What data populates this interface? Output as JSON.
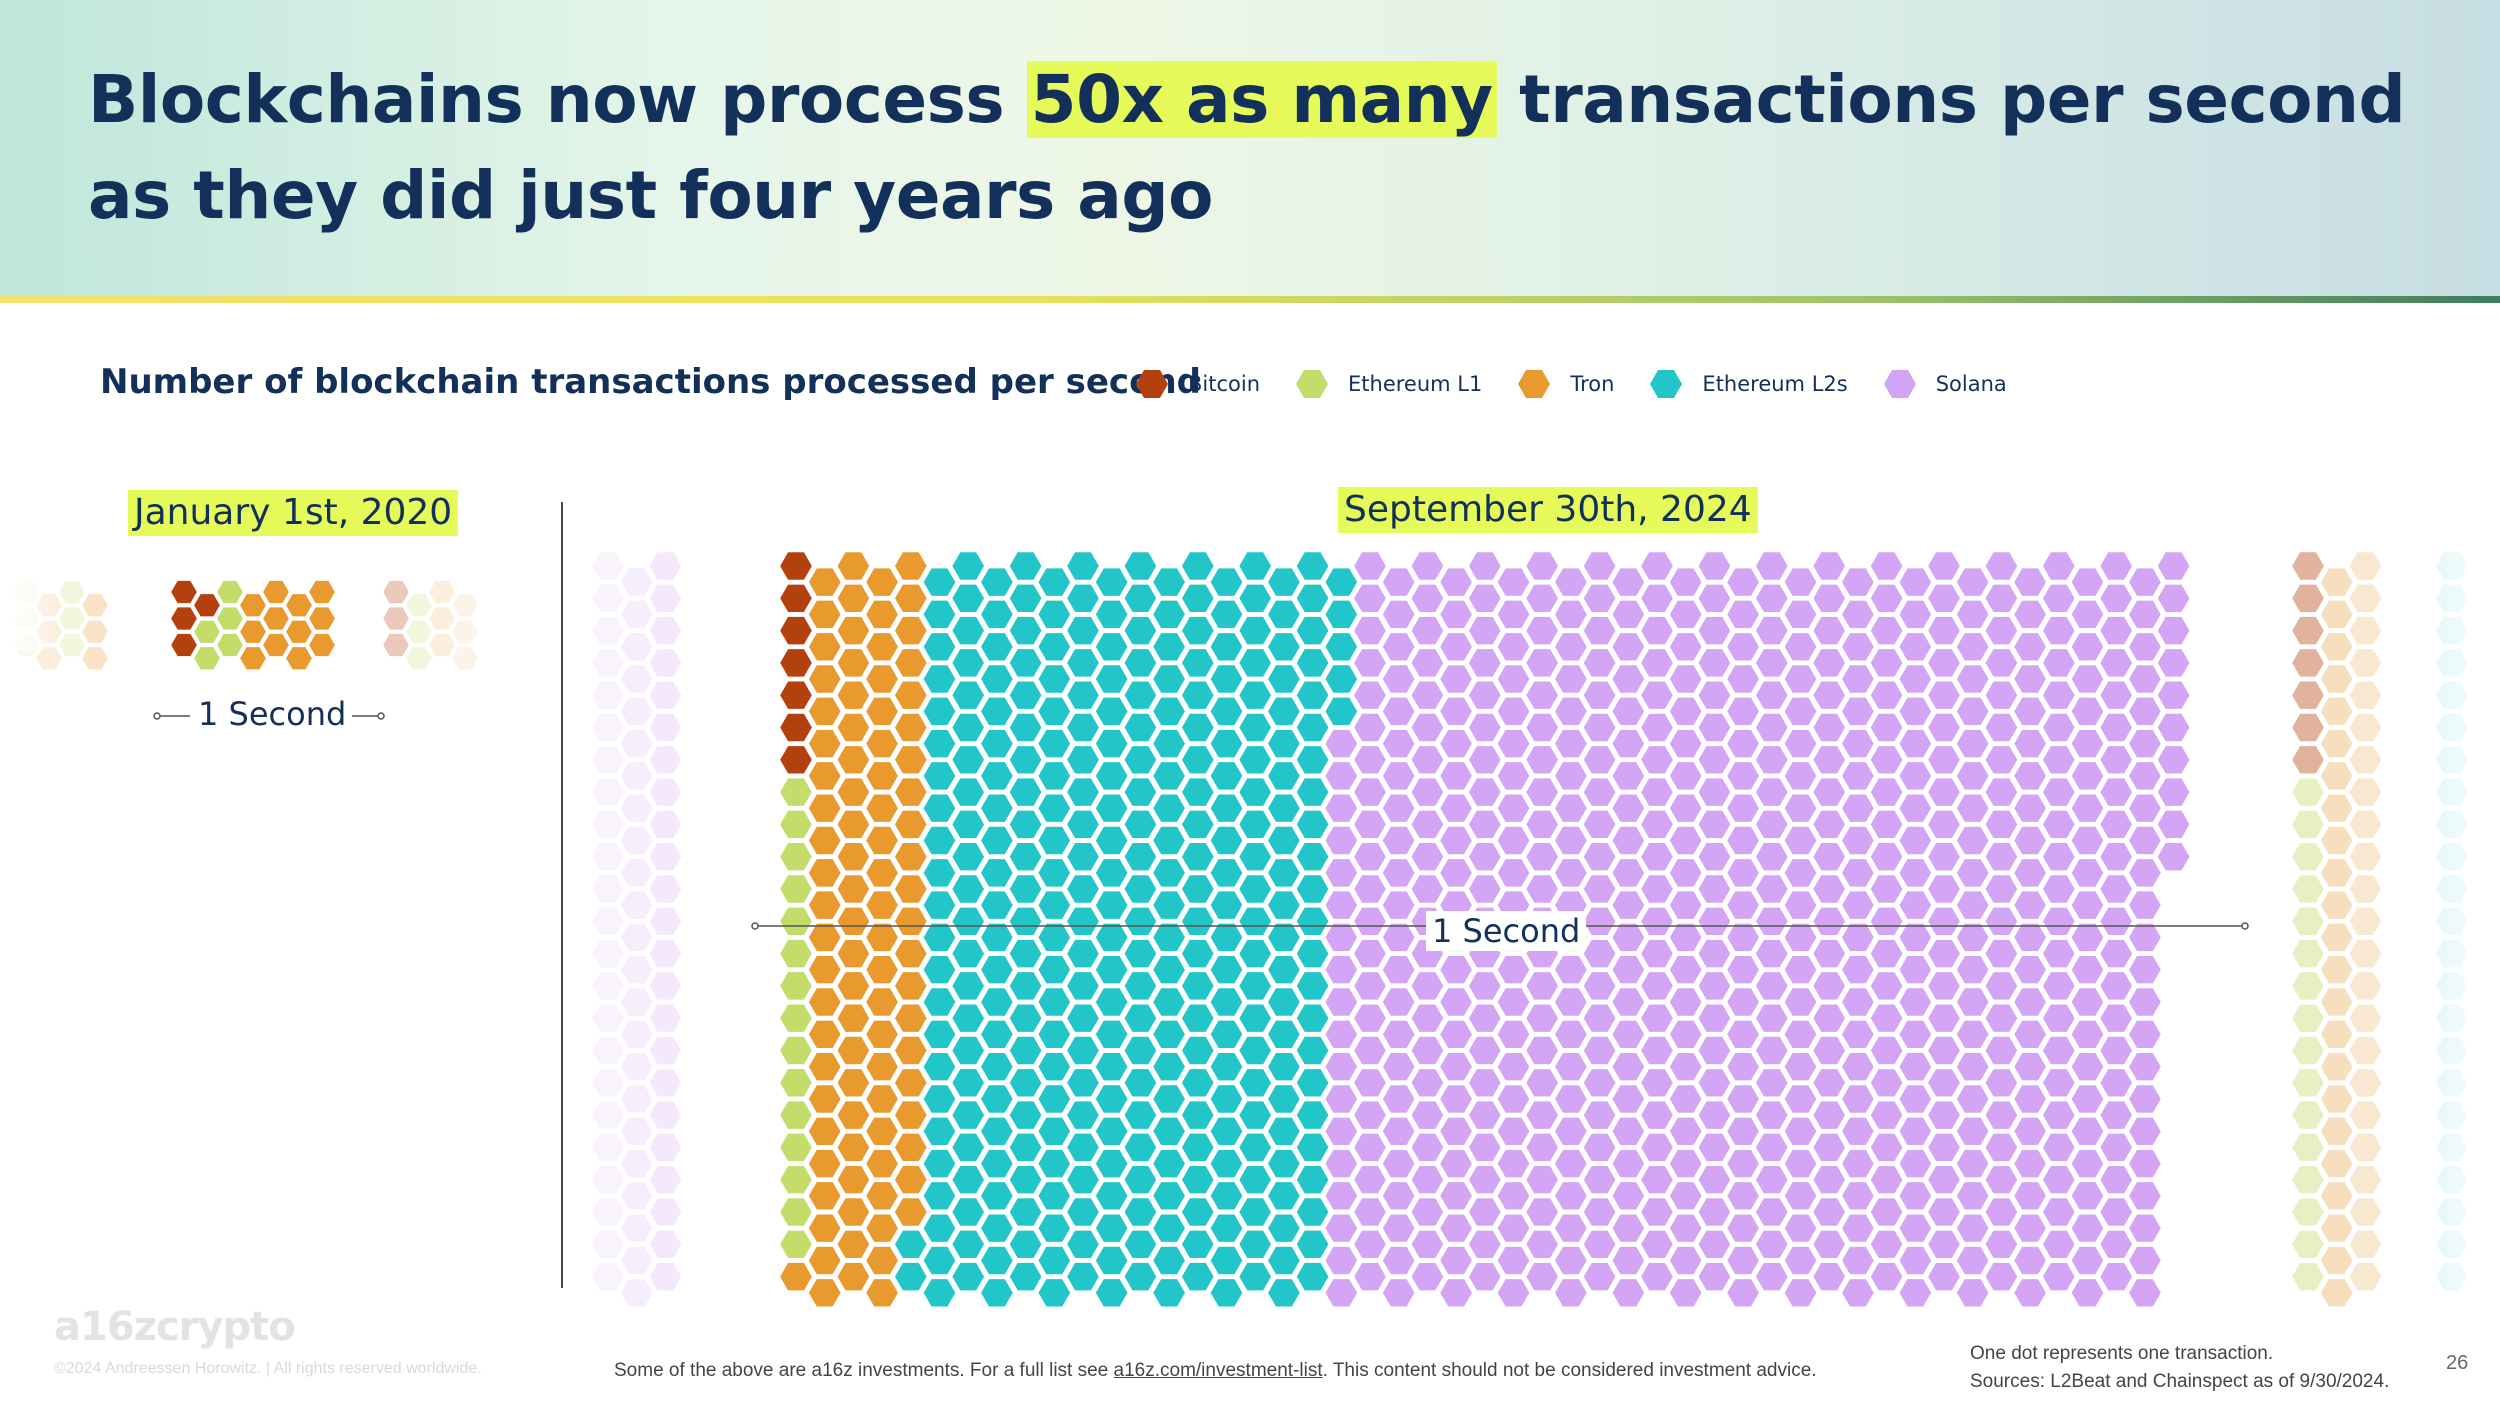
{
  "header": {
    "title_before": "Blockchains now process ",
    "title_highlight": "50x as many",
    "title_after": " transactions per second as they did just four years ago"
  },
  "colors": {
    "Bitcoin": "#b5400f",
    "Ethereum L1": "#c3dc6a",
    "Tron": "#e89a2f",
    "Ethereum L2s": "#22c6c9",
    "Solana": "#d4a5f5",
    "highlight": "#e6fb5a",
    "navy": "#12305a"
  },
  "chart_data": {
    "type": "waffle",
    "title": "Number of blockchain transactions processed per second",
    "unit_note": "One dot represents one transaction.",
    "legend": [
      "Bitcoin",
      "Ethereum L1",
      "Tron",
      "Ethereum L2s",
      "Solana"
    ],
    "panels": [
      {
        "date": "January 1st, 2020",
        "span_label": "1 Second",
        "values": {
          "Bitcoin": 4,
          "Ethereum L1": 5,
          "Tron": 12,
          "Ethereum L2s": 0,
          "Solana": 0
        }
      },
      {
        "date": "September 30th, 2024",
        "span_label": "1 Second",
        "values": {
          "Bitcoin": 7,
          "Ethereum L1": 15,
          "Tron": 91,
          "Ethereum L2s": 329,
          "Solana": 672
        }
      }
    ]
  },
  "footer": {
    "logo": "a16zcrypto",
    "copyright": "©2024 Andreessen Horowitz. | All rights reserved worldwide.",
    "disclaimer_before": "Some of the above are a16z investments. For a full list see ",
    "disclaimer_link": "a16z.com/investment-list",
    "disclaimer_after": ". This content should not be considered investment advice.",
    "note": "One dot represents one transaction.",
    "sources": "Sources: L2Beat and Chainspect as of 9/30/2024.",
    "page_number": "26"
  }
}
